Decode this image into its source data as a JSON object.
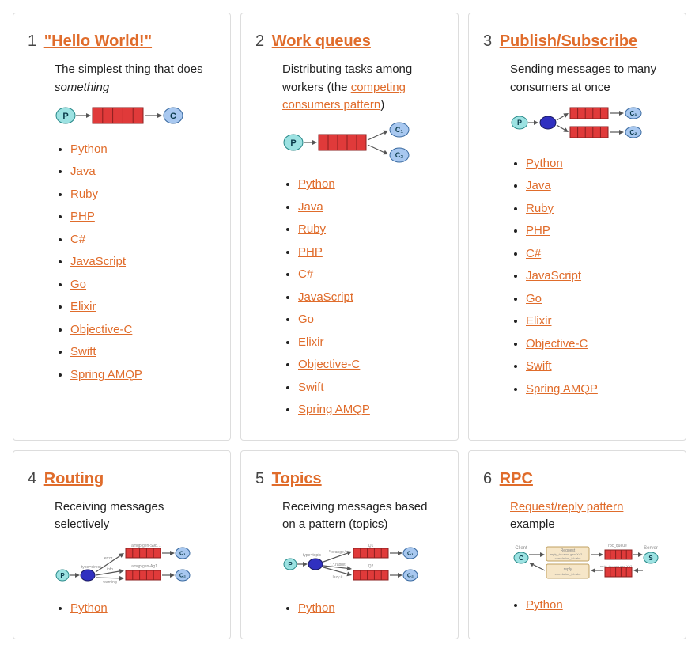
{
  "colors": {
    "link": "#e06c2b",
    "card_border": "#dddddd",
    "text": "#222222",
    "bg": "#ffffff",
    "producer_fill": "#9ce2e2",
    "producer_stroke": "#2a8a8a",
    "queue_fill": "#e03a3a",
    "queue_stroke": "#8a1f1f",
    "consumer_fill": "#a8c8f0",
    "consumer_stroke": "#3a6aa0",
    "exchange_fill": "#3030c0",
    "exchange_stroke": "#1a1a60",
    "arrow": "#555555",
    "sublabel": "#888888"
  },
  "tutorials": [
    {
      "num": "1",
      "title": "\"Hello World!\"",
      "desc_html": "The simplest thing that does <em>something</em>",
      "diagram": "hello",
      "langs": [
        "Python",
        "Java",
        "Ruby",
        "PHP",
        "C#",
        "JavaScript",
        "Go",
        "Elixir",
        "Objective-C",
        "Swift",
        "Spring AMQP"
      ]
    },
    {
      "num": "2",
      "title": "Work queues",
      "desc_html": "Distributing tasks among workers (the <a href=\"#\">competing consumers pattern</a>)",
      "diagram": "work",
      "langs": [
        "Python",
        "Java",
        "Ruby",
        "PHP",
        "C#",
        "JavaScript",
        "Go",
        "Elixir",
        "Objective-C",
        "Swift",
        "Spring AMQP"
      ]
    },
    {
      "num": "3",
      "title": "Publish/Subscribe",
      "desc_html": "Sending messages to many consumers at once",
      "diagram": "pubsub",
      "langs": [
        "Python",
        "Java",
        "Ruby",
        "PHP",
        "C#",
        "JavaScript",
        "Go",
        "Elixir",
        "Objective-C",
        "Swift",
        "Spring AMQP"
      ]
    },
    {
      "num": "4",
      "title": "Routing",
      "desc_html": "Receiving messages selectively",
      "diagram": "routing",
      "langs": [
        "Python"
      ]
    },
    {
      "num": "5",
      "title": "Topics",
      "desc_html": "Receiving messages based on a pattern (topics)",
      "diagram": "topics",
      "langs": [
        "Python"
      ]
    },
    {
      "num": "6",
      "title": "RPC",
      "desc_html": "<a href=\"#\">Request/reply pattern</a> example",
      "diagram": "rpc",
      "langs": [
        "Python"
      ]
    }
  ],
  "diagram_labels": {
    "P": "P",
    "C": "C",
    "C1": "C₁",
    "C2": "C₂",
    "X": "X",
    "routing_keys": [
      "error",
      "info",
      "warning",
      "type=direct",
      "amqp.gen-S9b…",
      "amqp.gen-Ag1…"
    ],
    "topics_keys": [
      "type=topic",
      "*.orange.*",
      "*.*.rabbit",
      "lazy.#",
      "Q1",
      "Q2"
    ],
    "rpc": [
      "Client",
      "Server",
      "Request",
      "rpc_queue",
      "reply_to=amq.gen-Xa2…",
      "correlation_id=abc",
      "reply",
      "correlation_id=abc"
    ]
  }
}
